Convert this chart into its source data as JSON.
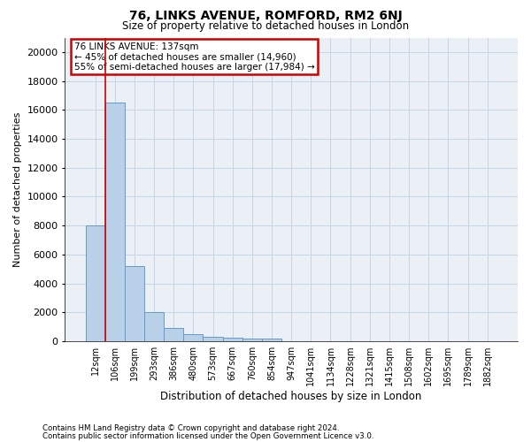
{
  "title": "76, LINKS AVENUE, ROMFORD, RM2 6NJ",
  "subtitle": "Size of property relative to detached houses in London",
  "xlabel": "Distribution of detached houses by size in London",
  "ylabel": "Number of detached properties",
  "footnote1": "Contains HM Land Registry data © Crown copyright and database right 2024.",
  "footnote2": "Contains public sector information licensed under the Open Government Licence v3.0.",
  "annotation_title": "76 LINKS AVENUE: 137sqm",
  "annotation_line1": "← 45% of detached houses are smaller (14,960)",
  "annotation_line2": "55% of semi-detached houses are larger (17,984) →",
  "bar_labels": [
    "12sqm",
    "106sqm",
    "199sqm",
    "293sqm",
    "386sqm",
    "480sqm",
    "573sqm",
    "667sqm",
    "760sqm",
    "854sqm",
    "947sqm",
    "1041sqm",
    "1134sqm",
    "1228sqm",
    "1321sqm",
    "1415sqm",
    "1508sqm",
    "1602sqm",
    "1695sqm",
    "1789sqm",
    "1882sqm"
  ],
  "bar_values": [
    8000,
    16500,
    5200,
    2000,
    900,
    500,
    300,
    250,
    200,
    200,
    0,
    0,
    0,
    0,
    0,
    0,
    0,
    0,
    0,
    0,
    0
  ],
  "bar_color": "#b8d0e8",
  "bar_edge_color": "#6699cc",
  "vline_color": "#cc0000",
  "vline_x": 0.5,
  "grid_color": "#c5d5e5",
  "background_color": "#eaf0f6",
  "annotation_box_color": "#ffffff",
  "annotation_box_edge": "#cc0000",
  "ylim": [
    0,
    21000
  ],
  "yticks": [
    0,
    2000,
    4000,
    6000,
    8000,
    10000,
    12000,
    14000,
    16000,
    18000,
    20000
  ]
}
